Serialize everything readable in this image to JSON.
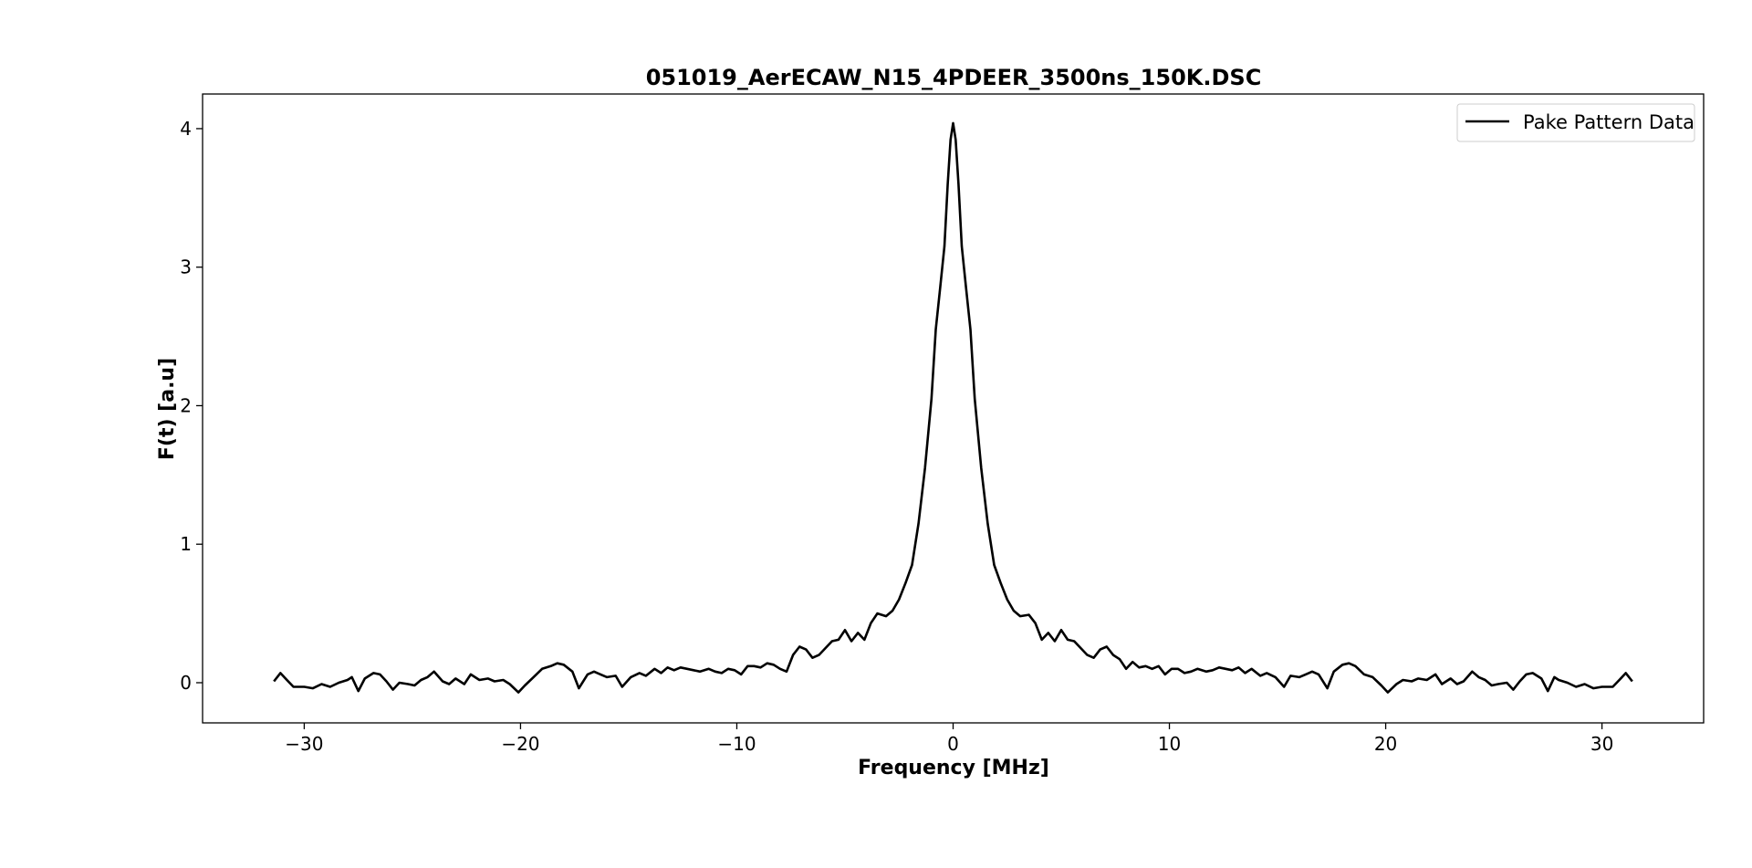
{
  "chart_data": {
    "type": "line",
    "title": "051019_AerECAW_N15_4PDEER_3500ns_150K.DSC",
    "xlabel": "Frequency [MHz]",
    "ylabel": "F(t) [a.u]",
    "xlim": [
      -34.7,
      34.7
    ],
    "ylim": [
      -0.29,
      4.25
    ],
    "xticks": [
      -30,
      -20,
      -10,
      0,
      10,
      20,
      30
    ],
    "xtick_labels": [
      "−30",
      "−20",
      "−10",
      "0",
      "10",
      "20",
      "30"
    ],
    "yticks": [
      0,
      1,
      2,
      3,
      4
    ],
    "ytick_labels": [
      "0",
      "1",
      "2",
      "3",
      "4"
    ],
    "grid": false,
    "legend": {
      "placement": "top-right",
      "entries": [
        "Pake Pattern Data"
      ]
    },
    "series": [
      {
        "name": "Pake Pattern Data",
        "color": "#000000",
        "points": [
          [
            -31.4,
            0.01
          ],
          [
            -31.1,
            0.07
          ],
          [
            -30.8,
            0.02
          ],
          [
            -30.5,
            -0.03
          ],
          [
            -30.0,
            -0.03
          ],
          [
            -29.6,
            -0.04
          ],
          [
            -29.2,
            -0.01
          ],
          [
            -28.8,
            -0.03
          ],
          [
            -28.4,
            0.0
          ],
          [
            -28.0,
            0.02
          ],
          [
            -27.8,
            0.04
          ],
          [
            -27.5,
            -0.06
          ],
          [
            -27.2,
            0.03
          ],
          [
            -26.8,
            0.07
          ],
          [
            -26.5,
            0.06
          ],
          [
            -26.2,
            0.01
          ],
          [
            -25.9,
            -0.05
          ],
          [
            -25.6,
            0.0
          ],
          [
            -25.2,
            -0.01
          ],
          [
            -24.9,
            -0.02
          ],
          [
            -24.6,
            0.02
          ],
          [
            -24.3,
            0.04
          ],
          [
            -24.0,
            0.08
          ],
          [
            -23.6,
            0.01
          ],
          [
            -23.3,
            -0.01
          ],
          [
            -23.0,
            0.03
          ],
          [
            -22.6,
            -0.01
          ],
          [
            -22.3,
            0.06
          ],
          [
            -21.9,
            0.02
          ],
          [
            -21.5,
            0.03
          ],
          [
            -21.2,
            0.01
          ],
          [
            -20.8,
            0.02
          ],
          [
            -20.5,
            -0.01
          ],
          [
            -20.1,
            -0.07
          ],
          [
            -19.8,
            -0.02
          ],
          [
            -19.4,
            0.04
          ],
          [
            -19.0,
            0.1
          ],
          [
            -18.6,
            0.12
          ],
          [
            -18.3,
            0.14
          ],
          [
            -18.0,
            0.13
          ],
          [
            -17.6,
            0.08
          ],
          [
            -17.3,
            -0.04
          ],
          [
            -16.9,
            0.06
          ],
          [
            -16.6,
            0.08
          ],
          [
            -16.3,
            0.06
          ],
          [
            -16.0,
            0.04
          ],
          [
            -15.6,
            0.05
          ],
          [
            -15.3,
            -0.03
          ],
          [
            -14.9,
            0.04
          ],
          [
            -14.5,
            0.07
          ],
          [
            -14.2,
            0.05
          ],
          [
            -13.8,
            0.1
          ],
          [
            -13.5,
            0.07
          ],
          [
            -13.2,
            0.11
          ],
          [
            -12.9,
            0.09
          ],
          [
            -12.6,
            0.11
          ],
          [
            -12.3,
            0.1
          ],
          [
            -12.0,
            0.09
          ],
          [
            -11.7,
            0.08
          ],
          [
            -11.3,
            0.1
          ],
          [
            -11.0,
            0.08
          ],
          [
            -10.7,
            0.07
          ],
          [
            -10.4,
            0.1
          ],
          [
            -10.1,
            0.09
          ],
          [
            -9.8,
            0.06
          ],
          [
            -9.5,
            0.12
          ],
          [
            -9.2,
            0.12
          ],
          [
            -8.9,
            0.11
          ],
          [
            -8.6,
            0.14
          ],
          [
            -8.3,
            0.13
          ],
          [
            -8.0,
            0.1
          ],
          [
            -7.7,
            0.08
          ],
          [
            -7.4,
            0.2
          ],
          [
            -7.1,
            0.26
          ],
          [
            -6.8,
            0.24
          ],
          [
            -6.5,
            0.18
          ],
          [
            -6.2,
            0.2
          ],
          [
            -5.9,
            0.25
          ],
          [
            -5.6,
            0.3
          ],
          [
            -5.3,
            0.31
          ],
          [
            -5.0,
            0.38
          ],
          [
            -4.7,
            0.3
          ],
          [
            -4.4,
            0.36
          ],
          [
            -4.1,
            0.31
          ],
          [
            -3.8,
            0.43
          ],
          [
            -3.5,
            0.5
          ],
          [
            -3.1,
            0.48
          ],
          [
            -2.8,
            0.52
          ],
          [
            -2.5,
            0.6
          ],
          [
            -2.2,
            0.72
          ],
          [
            -1.9,
            0.85
          ],
          [
            -1.6,
            1.15
          ],
          [
            -1.3,
            1.55
          ],
          [
            -1.0,
            2.05
          ],
          [
            -0.8,
            2.55
          ],
          [
            -0.6,
            2.85
          ],
          [
            -0.4,
            3.15
          ],
          [
            -0.25,
            3.6
          ],
          [
            -0.12,
            3.92
          ],
          [
            0.0,
            4.04
          ],
          [
            0.12,
            3.92
          ],
          [
            0.25,
            3.6
          ],
          [
            0.4,
            3.15
          ],
          [
            0.6,
            2.85
          ],
          [
            0.8,
            2.55
          ],
          [
            1.0,
            2.05
          ],
          [
            1.3,
            1.55
          ],
          [
            1.6,
            1.15
          ],
          [
            1.9,
            0.85
          ],
          [
            2.2,
            0.72
          ],
          [
            2.5,
            0.6
          ],
          [
            2.8,
            0.52
          ],
          [
            3.1,
            0.48
          ],
          [
            3.5,
            0.49
          ],
          [
            3.8,
            0.43
          ],
          [
            4.1,
            0.31
          ],
          [
            4.4,
            0.36
          ],
          [
            4.7,
            0.3
          ],
          [
            5.0,
            0.38
          ],
          [
            5.3,
            0.31
          ],
          [
            5.6,
            0.3
          ],
          [
            5.9,
            0.25
          ],
          [
            6.2,
            0.2
          ],
          [
            6.5,
            0.18
          ],
          [
            6.8,
            0.24
          ],
          [
            7.1,
            0.26
          ],
          [
            7.4,
            0.2
          ],
          [
            7.7,
            0.17
          ],
          [
            8.0,
            0.1
          ],
          [
            8.3,
            0.15
          ],
          [
            8.6,
            0.11
          ],
          [
            8.9,
            0.12
          ],
          [
            9.2,
            0.1
          ],
          [
            9.5,
            0.12
          ],
          [
            9.8,
            0.06
          ],
          [
            10.1,
            0.1
          ],
          [
            10.4,
            0.1
          ],
          [
            10.7,
            0.07
          ],
          [
            11.0,
            0.08
          ],
          [
            11.3,
            0.1
          ],
          [
            11.7,
            0.08
          ],
          [
            12.0,
            0.09
          ],
          [
            12.3,
            0.11
          ],
          [
            12.6,
            0.1
          ],
          [
            12.9,
            0.09
          ],
          [
            13.2,
            0.11
          ],
          [
            13.5,
            0.07
          ],
          [
            13.8,
            0.1
          ],
          [
            14.2,
            0.05
          ],
          [
            14.5,
            0.07
          ],
          [
            14.9,
            0.04
          ],
          [
            15.3,
            -0.03
          ],
          [
            15.6,
            0.05
          ],
          [
            16.0,
            0.04
          ],
          [
            16.3,
            0.06
          ],
          [
            16.6,
            0.08
          ],
          [
            16.9,
            0.06
          ],
          [
            17.3,
            -0.04
          ],
          [
            17.6,
            0.08
          ],
          [
            18.0,
            0.13
          ],
          [
            18.3,
            0.14
          ],
          [
            18.6,
            0.12
          ],
          [
            19.0,
            0.06
          ],
          [
            19.4,
            0.04
          ],
          [
            19.8,
            -0.02
          ],
          [
            20.1,
            -0.07
          ],
          [
            20.5,
            -0.01
          ],
          [
            20.8,
            0.02
          ],
          [
            21.2,
            0.01
          ],
          [
            21.5,
            0.03
          ],
          [
            21.9,
            0.02
          ],
          [
            22.3,
            0.06
          ],
          [
            22.6,
            -0.01
          ],
          [
            23.0,
            0.03
          ],
          [
            23.3,
            -0.01
          ],
          [
            23.6,
            0.01
          ],
          [
            24.0,
            0.08
          ],
          [
            24.3,
            0.04
          ],
          [
            24.6,
            0.02
          ],
          [
            24.9,
            -0.02
          ],
          [
            25.2,
            -0.01
          ],
          [
            25.6,
            0.0
          ],
          [
            25.9,
            -0.05
          ],
          [
            26.2,
            0.01
          ],
          [
            26.5,
            0.06
          ],
          [
            26.8,
            0.07
          ],
          [
            27.2,
            0.03
          ],
          [
            27.5,
            -0.06
          ],
          [
            27.8,
            0.04
          ],
          [
            28.0,
            0.02
          ],
          [
            28.4,
            0.0
          ],
          [
            28.8,
            -0.03
          ],
          [
            29.2,
            -0.01
          ],
          [
            29.6,
            -0.04
          ],
          [
            30.0,
            -0.03
          ],
          [
            30.5,
            -0.03
          ],
          [
            30.8,
            0.02
          ],
          [
            31.1,
            0.07
          ],
          [
            31.4,
            0.01
          ]
        ]
      }
    ]
  }
}
